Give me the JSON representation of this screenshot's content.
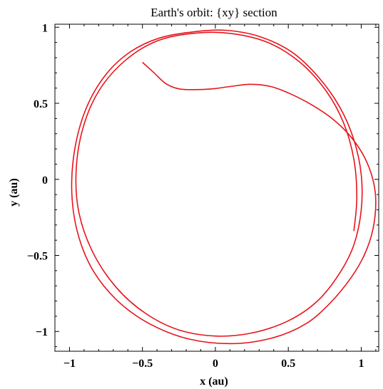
{
  "chart_data": {
    "type": "line",
    "title": "Earth's orbit: {xy} section",
    "xlabel": "x (au)",
    "ylabel": "y (au)",
    "xlim": [
      -1.1,
      1.12
    ],
    "ylim": [
      -1.13,
      1.02
    ],
    "xticks": [
      -1,
      -0.5,
      0,
      0.5,
      1
    ],
    "yticks": [
      -1,
      -0.5,
      0,
      0.5,
      1
    ],
    "xtick_labels": [
      "−1",
      "−0.5",
      "0",
      "0.5",
      "1"
    ],
    "ytick_labels": [
      "−1",
      "−0.5",
      "0",
      "0.5",
      "1"
    ],
    "grid": false,
    "color": "#e8141c",
    "series": [
      {
        "points": [
          [
            -0.5,
            0.77
          ],
          [
            -0.42,
            0.7
          ],
          [
            -0.34,
            0.63
          ],
          [
            -0.25,
            0.595
          ],
          [
            -0.14,
            0.59
          ],
          [
            -0.02,
            0.595
          ],
          [
            0.1,
            0.61
          ],
          [
            0.24,
            0.625
          ],
          [
            0.38,
            0.61
          ],
          [
            0.52,
            0.56
          ],
          [
            0.66,
            0.49
          ],
          [
            0.8,
            0.4
          ],
          [
            0.92,
            0.29
          ],
          [
            1.02,
            0.15
          ],
          [
            1.08,
            0.0
          ],
          [
            1.1,
            -0.15
          ],
          [
            1.08,
            -0.33
          ],
          [
            1.02,
            -0.5
          ],
          [
            0.92,
            -0.66
          ],
          [
            0.78,
            -0.82
          ],
          [
            0.62,
            -0.95
          ],
          [
            0.4,
            -1.04
          ],
          [
            0.12,
            -1.08
          ],
          [
            -0.18,
            -1.05
          ],
          [
            -0.45,
            -0.95
          ],
          [
            -0.68,
            -0.79
          ],
          [
            -0.85,
            -0.58
          ],
          [
            -0.95,
            -0.33
          ],
          [
            -0.985,
            -0.06
          ],
          [
            -0.96,
            0.22
          ],
          [
            -0.88,
            0.48
          ],
          [
            -0.75,
            0.69
          ],
          [
            -0.58,
            0.84
          ],
          [
            -0.38,
            0.93
          ],
          [
            -0.15,
            0.97
          ],
          [
            0.07,
            0.98
          ],
          [
            0.3,
            0.94
          ],
          [
            0.52,
            0.84
          ],
          [
            0.7,
            0.68
          ],
          [
            0.85,
            0.48
          ],
          [
            0.95,
            0.26
          ],
          [
            1.0,
            0.03
          ],
          [
            1.0,
            -0.2
          ],
          [
            0.95,
            -0.43
          ],
          [
            0.85,
            -0.62
          ],
          [
            0.7,
            -0.8
          ],
          [
            0.5,
            -0.93
          ],
          [
            0.25,
            -1.01
          ],
          [
            0.0,
            -1.03
          ],
          [
            -0.25,
            -0.99
          ],
          [
            -0.48,
            -0.88
          ],
          [
            -0.68,
            -0.71
          ],
          [
            -0.84,
            -0.48
          ],
          [
            -0.935,
            -0.22
          ],
          [
            -0.955,
            0.05
          ],
          [
            -0.91,
            0.33
          ],
          [
            -0.8,
            0.58
          ],
          [
            -0.62,
            0.78
          ],
          [
            -0.4,
            0.91
          ],
          [
            -0.15,
            0.96
          ],
          [
            0.1,
            0.96
          ],
          [
            0.36,
            0.9
          ],
          [
            0.58,
            0.77
          ],
          [
            0.76,
            0.58
          ],
          [
            0.88,
            0.37
          ],
          [
            0.95,
            0.13
          ],
          [
            0.97,
            -0.12
          ],
          [
            0.95,
            -0.34
          ]
        ]
      }
    ]
  }
}
